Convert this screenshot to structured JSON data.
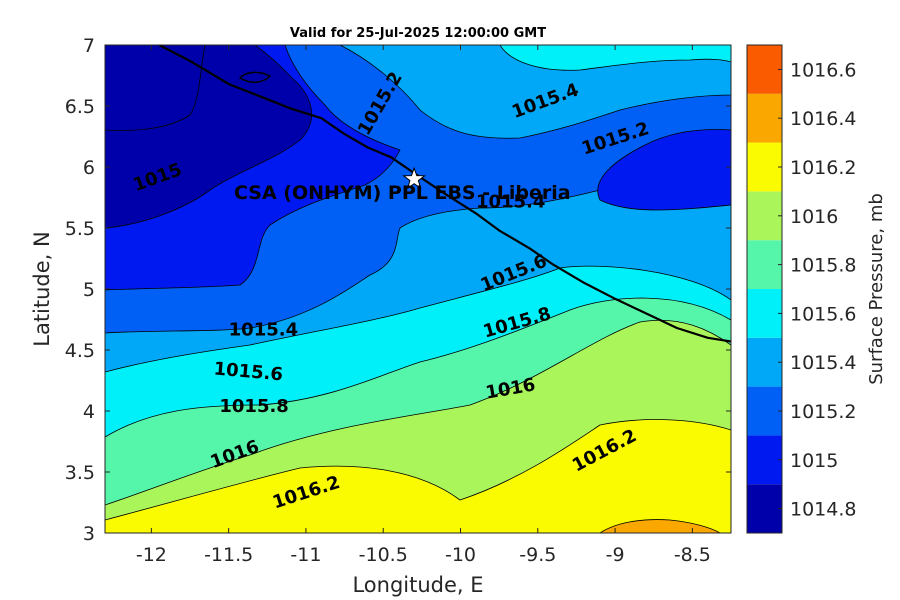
{
  "title": "Valid for 25-Jul-2025 12:00:00 GMT",
  "xlabel": "Longitude, E",
  "ylabel": "Latitude, N",
  "colorbar_label": "Surface Pressure, mb",
  "site_label": "CSA (ONHYM) PPL EBS - Liberia",
  "chart_data": {
    "type": "contour-map",
    "title": "Valid for 25-Jul-2025 12:00:00 GMT",
    "xlabel": "Longitude, E",
    "ylabel": "Latitude, N",
    "xlim": [
      -12.3,
      -8.25
    ],
    "ylim": [
      3,
      7
    ],
    "x_ticks": [
      -12,
      -11.5,
      -11,
      -10.5,
      -10,
      -9.5,
      -9,
      -8.5
    ],
    "y_ticks": [
      3,
      3.5,
      4,
      4.5,
      5,
      5.5,
      6,
      6.5,
      7
    ],
    "colorbar": {
      "label": "Surface Pressure, mb",
      "ticks": [
        1014.8,
        1015,
        1015.2,
        1015.4,
        1015.6,
        1015.8,
        1016,
        1016.2,
        1016.4,
        1016.6
      ],
      "bands": [
        {
          "from": 1014.8,
          "to": 1015.0,
          "color": "#0000aa"
        },
        {
          "from": 1015.0,
          "to": 1015.2,
          "color": "#0019f0"
        },
        {
          "from": 1015.2,
          "to": 1015.4,
          "color": "#0060f5"
        },
        {
          "from": 1015.4,
          "to": 1015.6,
          "color": "#00a8f7"
        },
        {
          "from": 1015.6,
          "to": 1015.8,
          "color": "#00f0fa"
        },
        {
          "from": 1015.8,
          "to": 1016.0,
          "color": "#55f5aa"
        },
        {
          "from": 1016.0,
          "to": 1016.2,
          "color": "#aaf55a"
        },
        {
          "from": 1016.2,
          "to": 1016.4,
          "color": "#fafa00"
        },
        {
          "from": 1016.4,
          "to": 1016.6,
          "color": "#faa800"
        },
        {
          "from": 1016.6,
          "to": 1016.8,
          "color": "#fa5a00"
        }
      ]
    },
    "contour_labels": [
      {
        "text": "1015",
        "lon": -12.1,
        "lat": 5.8,
        "angle": -20
      },
      {
        "text": "1015.2",
        "lon": -10.6,
        "lat": 6.25,
        "angle": -60
      },
      {
        "text": "1015.4",
        "lon": -9.65,
        "lat": 6.4,
        "angle": -20
      },
      {
        "text": "1015.2",
        "lon": -9.2,
        "lat": 6.1,
        "angle": -18
      },
      {
        "text": "1015.4",
        "lon": -9.9,
        "lat": 5.67,
        "angle": 0
      },
      {
        "text": "1015.6",
        "lon": -9.85,
        "lat": 4.98,
        "angle": -22
      },
      {
        "text": "1015.8",
        "lon": -9.84,
        "lat": 4.6,
        "angle": -16
      },
      {
        "text": "1015.4",
        "lon": -11.5,
        "lat": 4.62,
        "angle": 0
      },
      {
        "text": "1015.6",
        "lon": -11.6,
        "lat": 4.3,
        "angle": 5
      },
      {
        "text": "1015.8",
        "lon": -11.56,
        "lat": 3.99,
        "angle": 0
      },
      {
        "text": "1016",
        "lon": -9.83,
        "lat": 4.1,
        "angle": -10
      },
      {
        "text": "1016",
        "lon": -11.6,
        "lat": 3.53,
        "angle": -20
      },
      {
        "text": "1016.2",
        "lon": -11.2,
        "lat": 3.2,
        "angle": -18
      },
      {
        "text": "1016.2",
        "lon": -9.25,
        "lat": 3.5,
        "angle": -28
      }
    ],
    "site": {
      "name": "CSA (ONHYM) PPL EBS - Liberia",
      "lon": -10.3,
      "lat": 5.9,
      "marker": "star"
    },
    "coastline": [
      [
        -11.95,
        7.0
      ],
      [
        -11.75,
        6.87
      ],
      [
        -11.5,
        6.68
      ],
      [
        -11.3,
        6.58
      ],
      [
        -11.1,
        6.48
      ],
      [
        -10.9,
        6.4
      ],
      [
        -10.75,
        6.27
      ],
      [
        -10.6,
        6.16
      ],
      [
        -10.45,
        6.08
      ],
      [
        -10.3,
        5.95
      ],
      [
        -10.1,
        5.78
      ],
      [
        -9.9,
        5.62
      ],
      [
        -9.75,
        5.48
      ],
      [
        -9.55,
        5.33
      ],
      [
        -9.4,
        5.2
      ],
      [
        -9.2,
        5.05
      ],
      [
        -9.0,
        4.92
      ],
      [
        -8.8,
        4.8
      ],
      [
        -8.6,
        4.68
      ],
      [
        -8.4,
        4.6
      ],
      [
        -8.25,
        4.57
      ]
    ]
  }
}
